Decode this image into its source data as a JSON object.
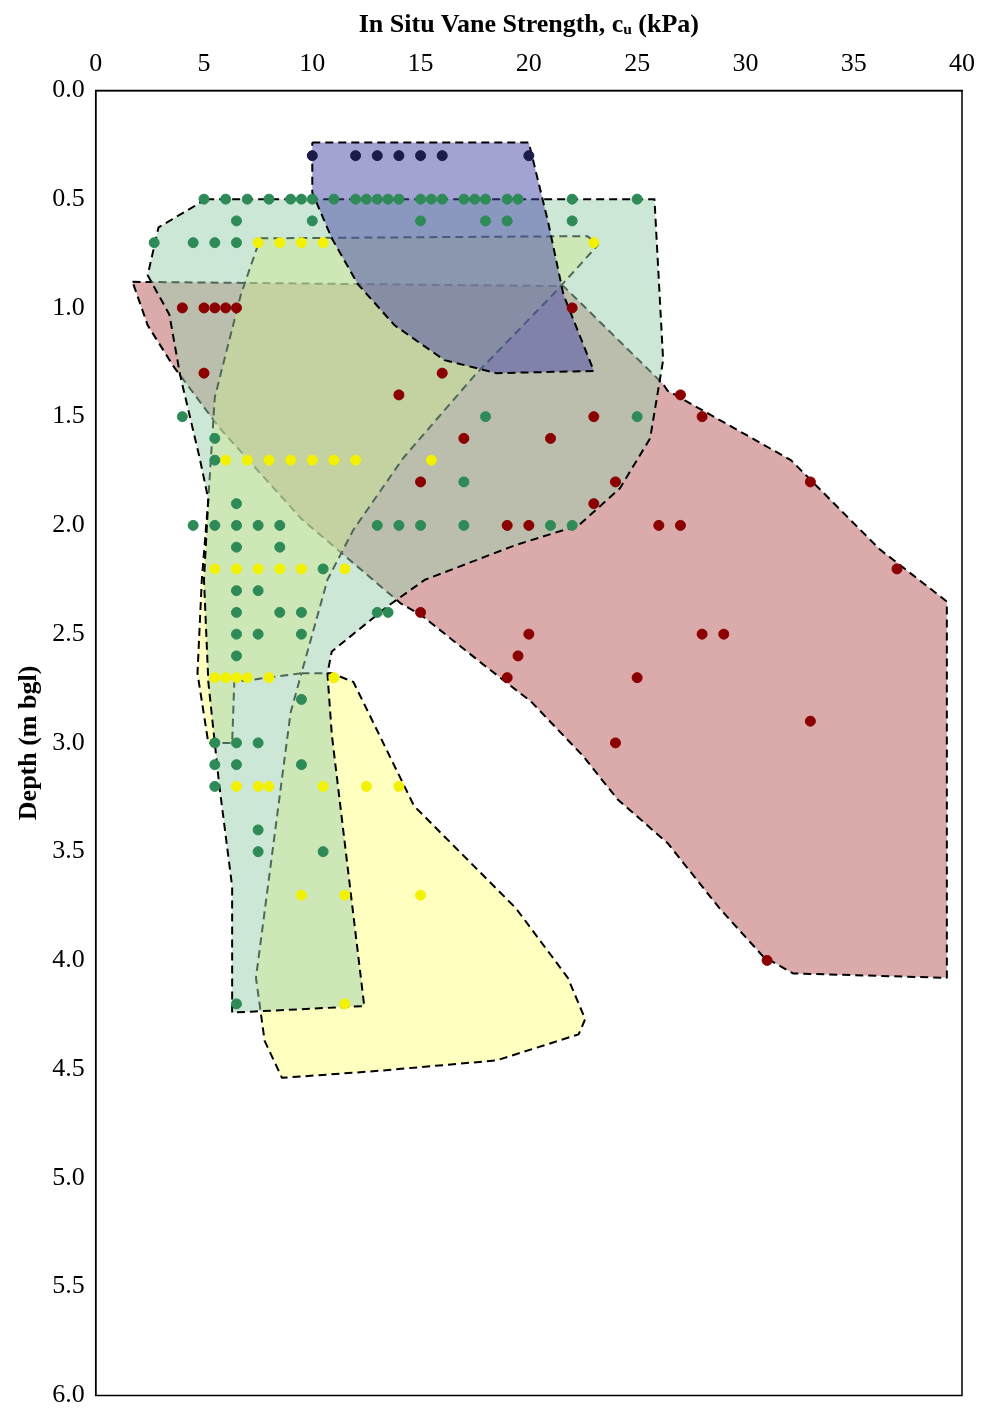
{
  "chart_data": {
    "type": "scatter",
    "xlabel": "In Situ Vane Strength, cᵤ (kPa)",
    "ylabel": "Depth (m bgl)",
    "xlim": [
      0,
      40
    ],
    "xticks": [
      0,
      5,
      10,
      15,
      20,
      25,
      30,
      35,
      40
    ],
    "ylim": [
      6,
      0
    ],
    "yticks": [
      {
        "value": 0,
        "label": "0.0"
      },
      {
        "value": 0.5,
        "label": "0.5"
      },
      {
        "value": 1,
        "label": "1.0"
      },
      {
        "value": 1.5,
        "label": "1.5"
      },
      {
        "value": 2,
        "label": "2.0"
      },
      {
        "value": 2.5,
        "label": "2.5"
      },
      {
        "value": 3,
        "label": "3.0"
      },
      {
        "value": 3.5,
        "label": "3.5"
      },
      {
        "value": 4,
        "label": "4.0"
      },
      {
        "value": 4.5,
        "label": "4.5"
      },
      {
        "value": 5,
        "label": "5.0"
      },
      {
        "value": 5.5,
        "label": "5.5"
      },
      {
        "value": 6,
        "label": "6.0"
      }
    ],
    "grid": false,
    "legend": false,
    "series": [
      {
        "type": "area",
        "color": "#4848a8",
        "line_style": "dashed",
        "x": [
          10,
          20,
          20.9,
          21.6,
          23,
          18.5,
          16.1,
          13.8,
          12.1,
          10.9,
          10,
          10
        ],
        "values": [
          0.24,
          0.24,
          0.61,
          0.94,
          1.29,
          1.3,
          1.24,
          1.08,
          0.89,
          0.68,
          0.47,
          0.24
        ]
      },
      {
        "type": "area",
        "color": "#9ccfb0",
        "line_style": "dashed",
        "x": [
          5.1,
          25.8,
          26.2,
          25.6,
          24.2,
          22.3,
          19.4,
          15.2,
          13.5,
          10.9,
          10.7,
          10.9,
          12.4,
          6.3,
          6.3,
          5.7,
          5.2,
          5,
          5.2,
          4.8,
          3.9,
          3.4,
          2.4,
          2.9,
          5.1
        ],
        "values": [
          0.5,
          0.5,
          1.24,
          1.6,
          1.83,
          2,
          2.09,
          2.25,
          2.37,
          2.58,
          2.68,
          2.96,
          4.21,
          4.24,
          3.66,
          3.19,
          2.72,
          2.25,
          1.88,
          1.69,
          1.31,
          1.03,
          0.85,
          0.63,
          0.5
        ]
      },
      {
        "type": "area",
        "color": "#ffff80",
        "line_style": "dashed",
        "x": [
          7.6,
          22.7,
          23.2,
          21.1,
          17.5,
          14.2,
          11.9,
          10.7,
          9.5,
          6.4,
          6.3,
          5.2,
          4.7,
          4.9,
          5.2,
          5.5,
          6.7,
          7.6
        ],
        "values": [
          0.68,
          0.67,
          0.71,
          0.94,
          1.31,
          1.69,
          2.02,
          2.25,
          2.68,
          2.72,
          3,
          3,
          2.68,
          2.25,
          1.88,
          1.41,
          0.94,
          0.68
        ]
      },
      {
        "type": "area",
        "color": "#ffff80",
        "line_style": "dashed",
        "x": [
          9.5,
          10.9,
          11.9,
          14.7,
          16.1,
          19.4,
          21.8,
          22.6,
          22.3,
          18.5,
          12.8,
          8.6,
          7.8,
          7.4,
          9,
          9.5
        ],
        "values": [
          2.68,
          2.68,
          2.72,
          3.29,
          3.43,
          3.76,
          4.08,
          4.27,
          4.34,
          4.46,
          4.51,
          4.54,
          4.37,
          4.08,
          2.86,
          2.68
        ]
      },
      {
        "type": "area",
        "color": "#b85858",
        "line_style": "dashed",
        "x": [
          1.7,
          21.6,
          26.2,
          26.4,
          32.1,
          36.2,
          39.3,
          39.3,
          32.2,
          30.8,
          28.8,
          26.4,
          24.1,
          22.5,
          20.1,
          17.9,
          15,
          14.1,
          9.5,
          5.7,
          3.6,
          2.4,
          1.7
        ],
        "values": [
          0.88,
          0.9,
          1.35,
          1.38,
          1.7,
          2.11,
          2.35,
          4.08,
          4.06,
          3.98,
          3.76,
          3.46,
          3.26,
          3.06,
          2.81,
          2.64,
          2.41,
          2.36,
          1.97,
          1.55,
          1.27,
          1.08,
          0.88
        ]
      },
      {
        "color": "#2e8b57",
        "marker": "circle",
        "x": [
          5,
          6,
          7,
          8,
          9,
          9.5,
          10,
          11,
          12,
          12.5,
          13,
          13.5,
          14,
          15,
          15.5,
          16,
          17,
          17.5,
          18,
          19,
          19.5,
          22,
          25,
          6.5,
          10,
          15,
          18,
          19,
          22,
          2.7,
          4.5,
          5.5,
          6.5,
          4,
          18,
          25,
          5.5,
          5.5,
          17,
          6.5,
          4.5,
          5.5,
          6.5,
          7.5,
          8.5,
          13,
          14,
          15,
          17,
          21,
          22,
          6.5,
          8.5,
          10.5,
          6.5,
          7.5,
          6.5,
          8.5,
          9.5,
          13,
          13.5,
          6.5,
          7.5,
          9.5,
          6.5,
          9.5,
          5.5,
          6.5,
          7.5,
          5.5,
          6.5,
          9.5,
          5.5,
          7.5,
          7.5,
          10.5,
          6.5
        ],
        "values": [
          0.5,
          0.5,
          0.5,
          0.5,
          0.5,
          0.5,
          0.5,
          0.5,
          0.5,
          0.5,
          0.5,
          0.5,
          0.5,
          0.5,
          0.5,
          0.5,
          0.5,
          0.5,
          0.5,
          0.5,
          0.5,
          0.5,
          0.5,
          0.6,
          0.6,
          0.6,
          0.6,
          0.6,
          0.6,
          0.7,
          0.7,
          0.7,
          0.7,
          1.5,
          1.5,
          1.5,
          1.6,
          1.7,
          1.8,
          1.9,
          2,
          2,
          2,
          2,
          2,
          2,
          2,
          2,
          2,
          2,
          2,
          2.1,
          2.1,
          2.2,
          2.3,
          2.3,
          2.4,
          2.4,
          2.4,
          2.4,
          2.4,
          2.5,
          2.5,
          2.5,
          2.6,
          2.8,
          3,
          3,
          3,
          3.1,
          3.1,
          3.1,
          3.2,
          3.4,
          3.5,
          3.5,
          4.2
        ]
      },
      {
        "color": "#f2f200",
        "marker": "circle",
        "x": [
          7.5,
          8.5,
          9.5,
          10.5,
          23,
          6,
          7,
          8,
          9,
          10,
          11,
          12,
          15.5,
          5.5,
          6.5,
          7.5,
          8.5,
          9.5,
          11.5,
          5.5,
          6,
          6.5,
          7,
          8,
          11,
          6.5,
          7.5,
          8,
          10.5,
          12.5,
          14,
          9.5,
          11.5,
          15,
          11.5
        ],
        "values": [
          0.7,
          0.7,
          0.7,
          0.7,
          0.7,
          1.7,
          1.7,
          1.7,
          1.7,
          1.7,
          1.7,
          1.7,
          1.7,
          2.2,
          2.2,
          2.2,
          2.2,
          2.2,
          2.2,
          2.7,
          2.7,
          2.7,
          2.7,
          2.7,
          2.7,
          3.2,
          3.2,
          3.2,
          3.2,
          3.2,
          3.2,
          3.7,
          3.7,
          3.7,
          4.2
        ]
      },
      {
        "color": "#8b0000",
        "marker": "circle",
        "x": [
          4,
          5,
          5.5,
          6,
          6.5,
          22,
          5,
          16,
          14,
          27,
          23,
          28,
          17,
          21,
          15,
          24,
          33,
          23,
          19,
          20,
          26,
          27,
          37,
          15,
          20,
          28,
          29,
          19.5,
          19,
          25,
          33,
          24,
          31
        ],
        "values": [
          1,
          1,
          1,
          1,
          1,
          1,
          1.3,
          1.3,
          1.4,
          1.4,
          1.5,
          1.5,
          1.6,
          1.6,
          1.8,
          1.8,
          1.8,
          1.9,
          2,
          2,
          2,
          2,
          2.2,
          2.4,
          2.5,
          2.5,
          2.5,
          2.6,
          2.7,
          2.7,
          2.9,
          3,
          4
        ]
      },
      {
        "color": "#1c1c4a",
        "marker": "circle",
        "x": [
          10,
          12,
          13,
          14,
          15,
          16,
          20
        ],
        "values": [
          0.3,
          0.3,
          0.3,
          0.3,
          0.3,
          0.3,
          0.3
        ]
      }
    ]
  }
}
